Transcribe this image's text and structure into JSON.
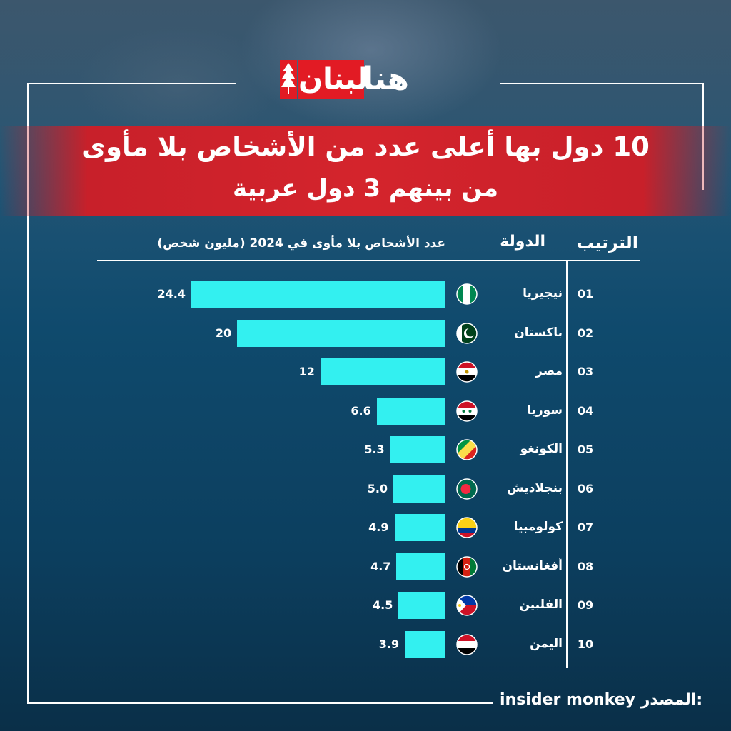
{
  "brand": {
    "logo_red_text": "لبنان",
    "logo_white_text": "هنا"
  },
  "title": {
    "line1": "10 دول بها أعلى عدد من الأشخاص بلا مأوى",
    "line2": "من بينهم 3 دول عربية"
  },
  "columns": {
    "rank": "الترتيب",
    "country": "الدولة",
    "value": "عدد الأشخاص بلا مأوى في 2024 (مليون شخص)"
  },
  "footer": {
    "source_label": "المصدر:",
    "source_value": "insider monkey"
  },
  "chart_data": {
    "type": "bar",
    "orientation": "horizontal",
    "categories": [
      "نيجيريا",
      "باكستان",
      "مصر",
      "سوريا",
      "الكونغو",
      "بنجلاديش",
      "كولومبيا",
      "أفغانستان",
      "الفلبين",
      "اليمن"
    ],
    "ranks": [
      "01",
      "02",
      "03",
      "04",
      "05",
      "06",
      "07",
      "08",
      "09",
      "10"
    ],
    "value_labels": [
      "24.4",
      "20",
      "12",
      "6.6",
      "5.3",
      "5.0",
      "4.9",
      "4.7",
      "4.5",
      "3.9"
    ],
    "values": [
      24.4,
      20,
      12,
      6.6,
      5.3,
      5.0,
      4.9,
      4.7,
      4.5,
      3.9
    ],
    "xlim": [
      0,
      24.4
    ]
  },
  "flags": [
    "nigeria-flag-icon",
    "pakistan-flag-icon",
    "egypt-flag-icon",
    "syria-flag-icon",
    "congo-flag-icon",
    "bangladesh-flag-icon",
    "colombia-flag-icon",
    "afghanistan-flag-icon",
    "philippines-flag-icon",
    "yemen-flag-icon"
  ],
  "colors": {
    "bar": "#33f0f0",
    "title_band": "#d4242c",
    "accent_red": "#e21b24"
  }
}
